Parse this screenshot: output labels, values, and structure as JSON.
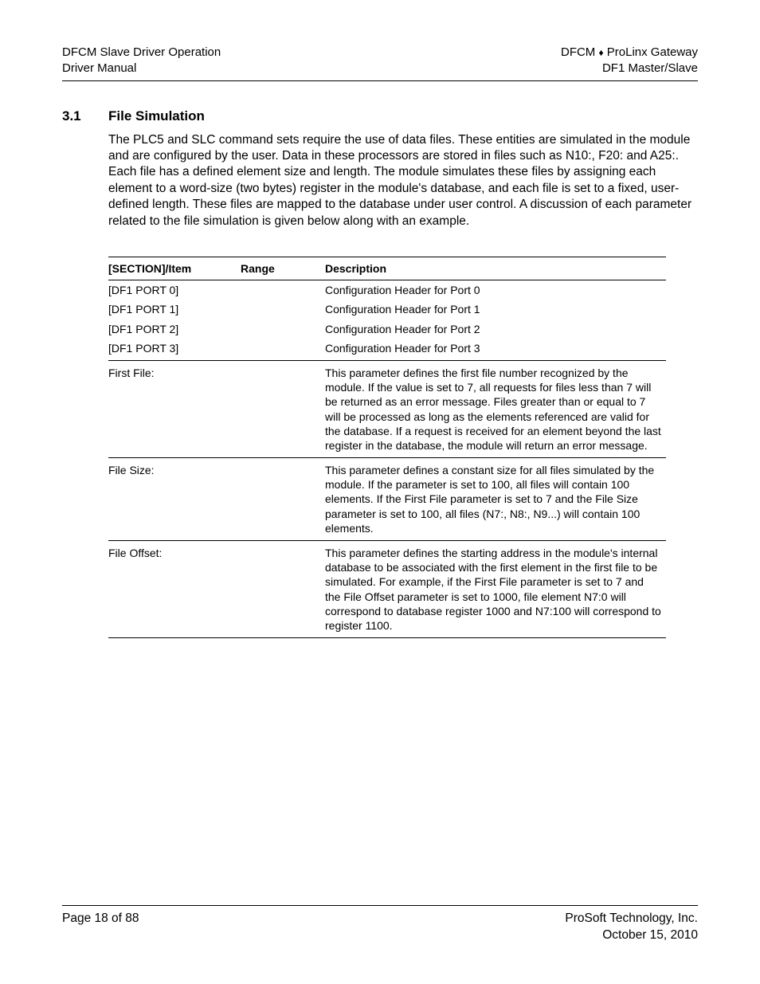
{
  "header": {
    "left_line1": "DFCM Slave Driver Operation",
    "left_line2": "Driver Manual",
    "right_line1_pre": "DFCM ",
    "right_line1_post": " ProLinx Gateway",
    "right_line2": "DF1 Master/Slave"
  },
  "section": {
    "number": "3.1",
    "title": "File Simulation",
    "paragraph": "The PLC5 and SLC command sets require the use of data files. These entities are simulated in the module and are configured by the user. Data in these processors are stored in files such as N10:, F20: and A25:. Each file has a defined element size and length. The module simulates these files by assigning each element to a word-size (two bytes) register in the module's database, and each file is set to a fixed, user-defined length. These files are mapped to the database under user control. A discussion of each parameter related to the file simulation is given below along with an example."
  },
  "table": {
    "columns": {
      "item": "[SECTION]/Item",
      "range": "Range",
      "desc": "Description"
    },
    "rows": [
      {
        "item": "[DF1 PORT 0]",
        "range": "",
        "desc": "Configuration Header for Port 0"
      },
      {
        "item": "[DF1 PORT 1]",
        "range": "",
        "desc": "Configuration Header for Port 1"
      },
      {
        "item": "[DF1 PORT 2]",
        "range": "",
        "desc": "Configuration Header for Port 2"
      },
      {
        "item": "[DF1 PORT 3]",
        "range": "",
        "desc": "Configuration Header for Port 3"
      },
      {
        "item": "First File:",
        "range": "",
        "desc": "This parameter defines the first file number recognized by the module. If the value is set to 7, all requests for files less than 7 will be returned as an error message. Files greater than or equal to 7 will be processed as long as the elements referenced are valid for the database. If a request is received for an element beyond the last register in the database, the module will return an error message."
      },
      {
        "item": "File Size:",
        "range": "",
        "desc": "This parameter defines a constant size for all files simulated by the module. If the parameter is set to 100, all files will contain 100 elements. If the First File parameter is set to 7 and the File Size parameter is set to 100, all files (N7:, N8:, N9...) will contain 100 elements."
      },
      {
        "item": "File Offset:",
        "range": "",
        "desc": "This parameter defines the starting address in the module's internal database to be associated with the first element in the first file to be simulated. For example, if the First File parameter is set to 7 and the File Offset parameter is set to 1000, file element N7:0 will correspond to database register 1000 and N7:100 will correspond to register 1100."
      }
    ]
  },
  "footer": {
    "left": "Page 18 of 88",
    "right_line1": "ProSoft Technology, Inc.",
    "right_line2": "October 15, 2010"
  }
}
